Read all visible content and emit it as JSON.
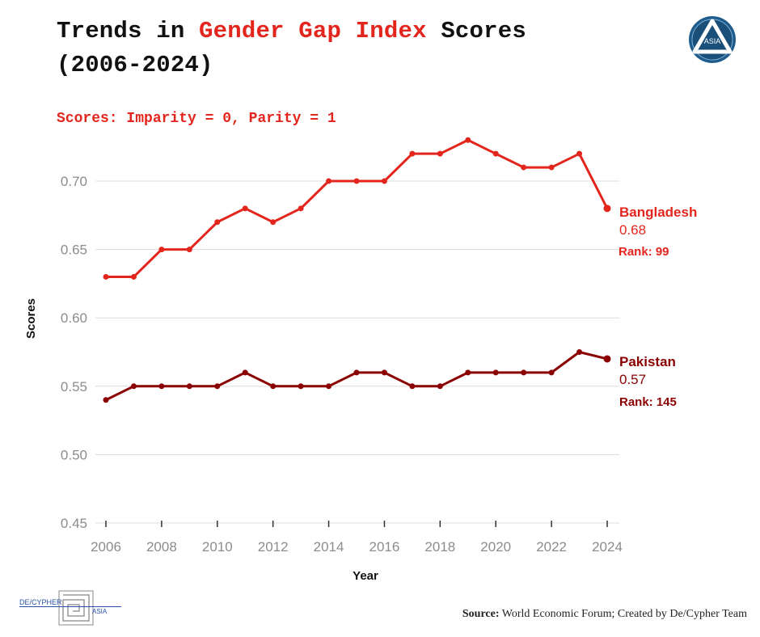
{
  "header": {
    "title_part1": "Trends in",
    "title_highlight": "Gender Gap Index",
    "title_part2": "Scores",
    "title_line2": "(2006-2024)",
    "subtitle": "Scores: Imparity = 0, Parity = 1"
  },
  "logo_top": {
    "name": "ASIA"
  },
  "logo_bottom": {
    "text_main": "DE/CYPHER",
    "text_sub": "ASIA"
  },
  "source": {
    "label": "Source:",
    "text": "World Economic Forum; Created by De/Cypher Team"
  },
  "colors": {
    "bangladesh": "#e3261d",
    "pakistan": "#8b0000",
    "grid": "#dcdcdc",
    "axis_text": "#8c8c8c"
  },
  "chart_data": {
    "type": "line",
    "title": "Trends in Gender Gap Index Scores (2006-2024)",
    "xlabel": "Year",
    "ylabel": "Scores",
    "x": [
      2006,
      2007,
      2008,
      2009,
      2010,
      2011,
      2012,
      2013,
      2014,
      2015,
      2016,
      2017,
      2018,
      2019,
      2020,
      2021,
      2022,
      2023,
      2024
    ],
    "xlim": [
      2006,
      2024
    ],
    "ylim": [
      0.45,
      0.71
    ],
    "x_ticks": [
      2006,
      2008,
      2010,
      2012,
      2014,
      2016,
      2018,
      2020,
      2022,
      2024
    ],
    "y_ticks": [
      0.45,
      0.5,
      0.55,
      0.6,
      0.65,
      0.7
    ],
    "y_tick_labels": [
      "0.45",
      "0.50",
      "0.55",
      "0.60",
      "0.65",
      "0.70"
    ],
    "grid": true,
    "series": [
      {
        "name": "Bangladesh",
        "values": [
          0.63,
          0.63,
          0.65,
          0.65,
          0.67,
          0.68,
          0.67,
          0.68,
          0.7,
          0.7,
          0.7,
          0.72,
          0.72,
          0.73,
          0.72,
          0.71,
          0.71,
          0.72,
          0.68
        ],
        "end_value_label": "0.68",
        "rank_label": "Rank: 99"
      },
      {
        "name": "Pakistan",
        "values": [
          0.54,
          0.55,
          0.55,
          0.55,
          0.55,
          0.56,
          0.55,
          0.55,
          0.55,
          0.56,
          0.56,
          0.55,
          0.55,
          0.56,
          0.56,
          0.56,
          0.56,
          0.575,
          0.57
        ],
        "end_value_label": "0.57",
        "rank_label": "Rank: 145"
      }
    ]
  }
}
